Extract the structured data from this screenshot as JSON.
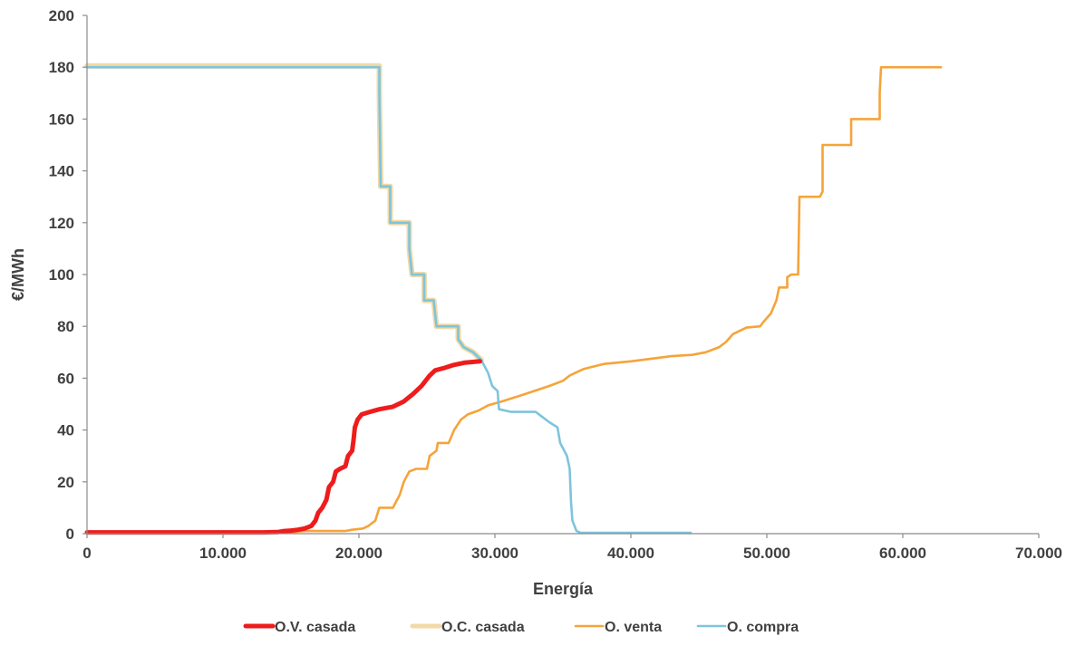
{
  "chart_data": {
    "type": "line",
    "xlabel": "Energía",
    "ylabel": "€/MWh",
    "xlim": [
      0,
      70000
    ],
    "ylim": [
      0,
      200
    ],
    "x_ticks": [
      {
        "value": 0,
        "label": "0"
      },
      {
        "value": 10000,
        "label": "10.000"
      },
      {
        "value": 20000,
        "label": "20.000"
      },
      {
        "value": 30000,
        "label": "30.000"
      },
      {
        "value": 40000,
        "label": "40.000"
      },
      {
        "value": 50000,
        "label": "50.000"
      },
      {
        "value": 60000,
        "label": "60.000"
      },
      {
        "value": 70000,
        "label": "70.000"
      }
    ],
    "y_ticks": [
      {
        "value": 0,
        "label": "0"
      },
      {
        "value": 20,
        "label": "20"
      },
      {
        "value": 40,
        "label": "40"
      },
      {
        "value": 60,
        "label": "60"
      },
      {
        "value": 80,
        "label": "80"
      },
      {
        "value": 100,
        "label": "100"
      },
      {
        "value": 120,
        "label": "120"
      },
      {
        "value": 140,
        "label": "140"
      },
      {
        "value": 160,
        "label": "160"
      },
      {
        "value": 180,
        "label": "180"
      },
      {
        "value": 200,
        "label": "200"
      }
    ],
    "grid": false,
    "legend_position": "bottom",
    "series": [
      {
        "name": "O.C. casada",
        "color": "#f2d9a7",
        "points": [
          [
            0,
            180.5
          ],
          [
            21500,
            180.5
          ],
          [
            21500,
            170
          ],
          [
            21600,
            134
          ],
          [
            22300,
            134
          ],
          [
            22300,
            120
          ],
          [
            23700,
            120
          ],
          [
            23700,
            110
          ],
          [
            23900,
            100
          ],
          [
            24800,
            100
          ],
          [
            24800,
            90
          ],
          [
            25500,
            90
          ],
          [
            25700,
            80
          ],
          [
            27300,
            80
          ],
          [
            27300,
            75
          ],
          [
            27700,
            72
          ],
          [
            28400,
            70
          ],
          [
            29000,
            67
          ]
        ]
      },
      {
        "name": "O. venta",
        "color": "#f5a43a",
        "points": [
          [
            0,
            0.5
          ],
          [
            15000,
            0.5
          ],
          [
            16000,
            1
          ],
          [
            19000,
            1
          ],
          [
            19500,
            1.5
          ],
          [
            20300,
            2
          ],
          [
            20700,
            3
          ],
          [
            21200,
            5
          ],
          [
            21500,
            10
          ],
          [
            22500,
            10
          ],
          [
            23000,
            15
          ],
          [
            23300,
            20
          ],
          [
            23700,
            24
          ],
          [
            24200,
            25
          ],
          [
            25000,
            25
          ],
          [
            25200,
            30
          ],
          [
            25700,
            32
          ],
          [
            25800,
            35
          ],
          [
            26600,
            35
          ],
          [
            27000,
            40
          ],
          [
            27500,
            44
          ],
          [
            28000,
            46
          ],
          [
            28800,
            47.5
          ],
          [
            29500,
            49.5
          ],
          [
            30500,
            51
          ],
          [
            32000,
            53.5
          ],
          [
            34000,
            57
          ],
          [
            35000,
            59
          ],
          [
            35500,
            61
          ],
          [
            36500,
            63.5
          ],
          [
            38000,
            65.5
          ],
          [
            40000,
            66.5
          ],
          [
            41500,
            67.5
          ],
          [
            43000,
            68.5
          ],
          [
            44500,
            69
          ],
          [
            45500,
            70
          ],
          [
            46500,
            72
          ],
          [
            47000,
            74
          ],
          [
            47500,
            77
          ],
          [
            48500,
            79.5
          ],
          [
            49500,
            80
          ],
          [
            49800,
            82
          ],
          [
            50300,
            85
          ],
          [
            50700,
            90
          ],
          [
            50900,
            95
          ],
          [
            51500,
            95
          ],
          [
            51500,
            99
          ],
          [
            51800,
            100
          ],
          [
            52300,
            100
          ],
          [
            52400,
            130
          ],
          [
            53900,
            130
          ],
          [
            54100,
            132
          ],
          [
            54100,
            150
          ],
          [
            56200,
            150
          ],
          [
            56200,
            160
          ],
          [
            58300,
            160
          ],
          [
            58300,
            170
          ],
          [
            58400,
            180
          ],
          [
            62800,
            180
          ]
        ]
      },
      {
        "name": "O. compra",
        "color": "#7ec4dc",
        "points": [
          [
            0,
            180
          ],
          [
            21500,
            180
          ],
          [
            21500,
            170
          ],
          [
            21600,
            134
          ],
          [
            22300,
            134
          ],
          [
            22300,
            120
          ],
          [
            23700,
            120
          ],
          [
            23700,
            110
          ],
          [
            23900,
            100
          ],
          [
            24800,
            100
          ],
          [
            24800,
            90
          ],
          [
            25500,
            90
          ],
          [
            25700,
            80
          ],
          [
            27300,
            80
          ],
          [
            27300,
            75
          ],
          [
            27700,
            72
          ],
          [
            28400,
            70
          ],
          [
            29000,
            67
          ],
          [
            29500,
            62
          ],
          [
            29800,
            57
          ],
          [
            30200,
            55
          ],
          [
            30300,
            48
          ],
          [
            31200,
            47
          ],
          [
            33000,
            47
          ],
          [
            33500,
            45
          ],
          [
            34000,
            43
          ],
          [
            34600,
            41
          ],
          [
            34800,
            35
          ],
          [
            35300,
            30
          ],
          [
            35500,
            25
          ],
          [
            35600,
            12
          ],
          [
            35700,
            5
          ],
          [
            36000,
            1
          ],
          [
            36300,
            0.3
          ],
          [
            40000,
            0.3
          ],
          [
            44400,
            0.3
          ]
        ]
      },
      {
        "name": "O.V. casada",
        "color": "#ee1c1c",
        "points": [
          [
            0,
            0.5
          ],
          [
            13000,
            0.5
          ],
          [
            14000,
            0.6
          ],
          [
            14500,
            1
          ],
          [
            15000,
            1.2
          ],
          [
            15500,
            1.5
          ],
          [
            16000,
            2
          ],
          [
            16500,
            3
          ],
          [
            16800,
            5
          ],
          [
            17000,
            8
          ],
          [
            17300,
            10
          ],
          [
            17600,
            13
          ],
          [
            17800,
            18
          ],
          [
            18100,
            20
          ],
          [
            18300,
            24
          ],
          [
            18600,
            25
          ],
          [
            19000,
            26
          ],
          [
            19200,
            30
          ],
          [
            19500,
            32
          ],
          [
            19600,
            36
          ],
          [
            19700,
            41
          ],
          [
            19900,
            44
          ],
          [
            20200,
            46
          ],
          [
            20800,
            47
          ],
          [
            21500,
            48
          ],
          [
            22500,
            49
          ],
          [
            23300,
            51
          ],
          [
            24000,
            54
          ],
          [
            24600,
            57
          ],
          [
            25200,
            61
          ],
          [
            25600,
            63
          ],
          [
            26300,
            64
          ],
          [
            26900,
            65
          ],
          [
            27800,
            66
          ],
          [
            28900,
            66.5
          ]
        ]
      }
    ]
  },
  "legend": [
    {
      "label": "O.V. casada",
      "color": "#ee1c1c"
    },
    {
      "label": "O.C. casada",
      "color": "#f2d9a7"
    },
    {
      "label": "O. venta",
      "color": "#f5a43a"
    },
    {
      "label": "O. compra",
      "color": "#7ec4dc"
    }
  ]
}
